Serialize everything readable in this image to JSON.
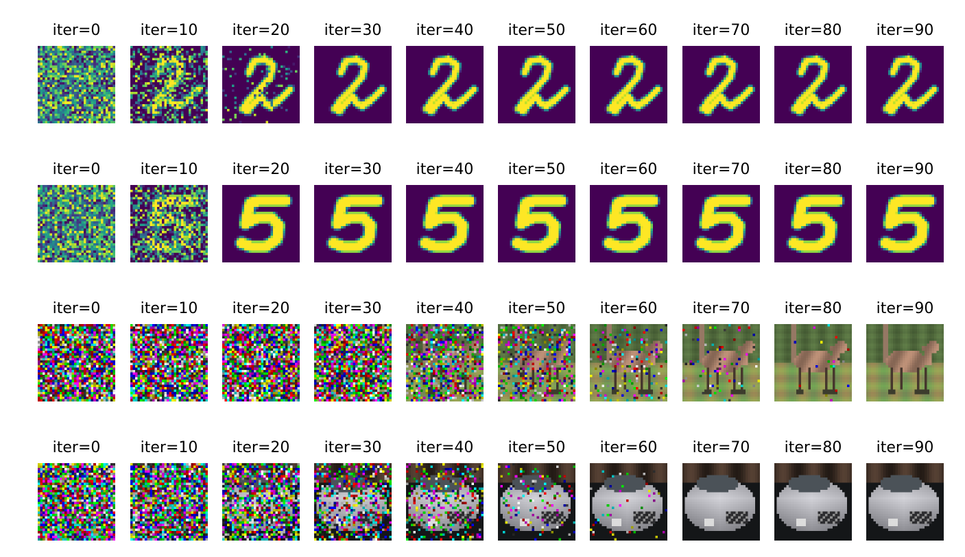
{
  "figure": {
    "rows": [
      {
        "content": "mnist-digit-2",
        "colormap": "viridis",
        "panels": [
          {
            "label": "iter=0",
            "noise": 1.0
          },
          {
            "label": "iter=10",
            "noise": 0.45
          },
          {
            "label": "iter=20",
            "noise": 0.1
          },
          {
            "label": "iter=30",
            "noise": 0.0
          },
          {
            "label": "iter=40",
            "noise": 0.0
          },
          {
            "label": "iter=50",
            "noise": 0.0
          },
          {
            "label": "iter=60",
            "noise": 0.0
          },
          {
            "label": "iter=70",
            "noise": 0.0
          },
          {
            "label": "iter=80",
            "noise": 0.0
          },
          {
            "label": "iter=90",
            "noise": 0.0
          }
        ]
      },
      {
        "content": "mnist-digit-5",
        "colormap": "viridis",
        "panels": [
          {
            "label": "iter=0",
            "noise": 1.0
          },
          {
            "label": "iter=10",
            "noise": 0.6
          },
          {
            "label": "iter=20",
            "noise": 0.0
          },
          {
            "label": "iter=30",
            "noise": 0.0
          },
          {
            "label": "iter=40",
            "noise": 0.0
          },
          {
            "label": "iter=50",
            "noise": 0.0
          },
          {
            "label": "iter=60",
            "noise": 0.0
          },
          {
            "label": "iter=70",
            "noise": 0.0
          },
          {
            "label": "iter=80",
            "noise": 0.0
          },
          {
            "label": "iter=90",
            "noise": 0.0
          }
        ]
      },
      {
        "content": "cifar-horse",
        "colormap": "rgb",
        "panels": [
          {
            "label": "iter=0",
            "noise": 1.0
          },
          {
            "label": "iter=10",
            "noise": 1.0
          },
          {
            "label": "iter=20",
            "noise": 1.0
          },
          {
            "label": "iter=30",
            "noise": 0.95
          },
          {
            "label": "iter=40",
            "noise": 0.55
          },
          {
            "label": "iter=50",
            "noise": 0.35
          },
          {
            "label": "iter=60",
            "noise": 0.15
          },
          {
            "label": "iter=70",
            "noise": 0.06
          },
          {
            "label": "iter=80",
            "noise": 0.02
          },
          {
            "label": "iter=90",
            "noise": 0.0
          }
        ]
      },
      {
        "content": "cifar-silver-car",
        "colormap": "rgb",
        "panels": [
          {
            "label": "iter=0",
            "noise": 1.0
          },
          {
            "label": "iter=10",
            "noise": 0.95
          },
          {
            "label": "iter=20",
            "noise": 0.75
          },
          {
            "label": "iter=30",
            "noise": 0.5
          },
          {
            "label": "iter=40",
            "noise": 0.3
          },
          {
            "label": "iter=50",
            "noise": 0.12
          },
          {
            "label": "iter=60",
            "noise": 0.04
          },
          {
            "label": "iter=70",
            "noise": 0.0
          },
          {
            "label": "iter=80",
            "noise": 0.0
          },
          {
            "label": "iter=90",
            "noise": 0.0
          }
        ]
      }
    ]
  }
}
